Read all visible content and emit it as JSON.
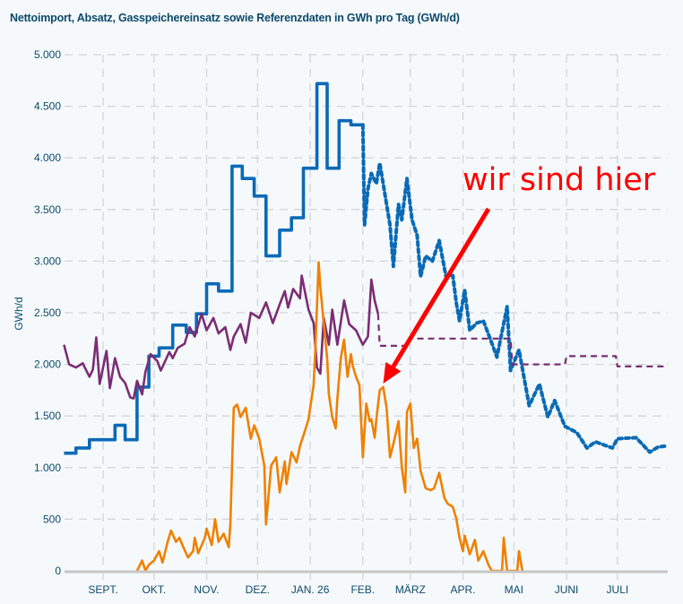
{
  "chart_data": {
    "type": "line",
    "title": "Nettoimport, Absatz, Gasspeichereinsatz sowie Referenzdaten in GWh pro Tag (GWh/d)",
    "ylabel": "GWh/d",
    "xlabel": "",
    "ylim": [
      0,
      5000
    ],
    "xlim": [
      "2025-08-09",
      "2026-07-30"
    ],
    "grid": true,
    "y_ticks": [
      {
        "value": 0,
        "label": "0"
      },
      {
        "value": 500,
        "label": "500"
      },
      {
        "value": 1000,
        "label": "1.000"
      },
      {
        "value": 1500,
        "label": "1.500"
      },
      {
        "value": 2000,
        "label": "2.000"
      },
      {
        "value": 2500,
        "label": "2.500"
      },
      {
        "value": 3000,
        "label": "3.000"
      },
      {
        "value": 3500,
        "label": "3.500"
      },
      {
        "value": 4000,
        "label": "4.000"
      },
      {
        "value": 4500,
        "label": "4.500"
      },
      {
        "value": 5000,
        "label": "5.000"
      }
    ],
    "x_ticks": [
      {
        "date": "2025-09-01",
        "label": "SEPT."
      },
      {
        "date": "2025-10-01",
        "label": "OKT."
      },
      {
        "date": "2025-11-01",
        "label": "NOV."
      },
      {
        "date": "2025-12-01",
        "label": "DEZ."
      },
      {
        "date": "2026-01-01",
        "label": "JAN. 26"
      },
      {
        "date": "2026-02-01",
        "label": "FEB."
      },
      {
        "date": "2026-03-01",
        "label": "MÄRZ"
      },
      {
        "date": "2026-04-01",
        "label": "APR."
      },
      {
        "date": "2026-05-01",
        "label": "MAI"
      },
      {
        "date": "2026-06-01",
        "label": "JUNI"
      },
      {
        "date": "2026-07-01",
        "label": "JULI"
      }
    ],
    "series": [
      {
        "color": "#0a6ab6",
        "style": "solid",
        "step": true,
        "points": [
          [
            "2025-08-09",
            1140
          ],
          [
            "2025-08-16",
            1190
          ],
          [
            "2025-08-24",
            1270
          ],
          [
            "2025-09-08",
            1410
          ],
          [
            "2025-09-14",
            1270
          ],
          [
            "2025-09-21",
            1780
          ],
          [
            "2025-09-28",
            2080
          ],
          [
            "2025-10-04",
            2160
          ],
          [
            "2025-10-12",
            2380
          ],
          [
            "2025-10-20",
            2310
          ],
          [
            "2025-10-26",
            2490
          ],
          [
            "2025-11-01",
            2780
          ],
          [
            "2025-11-08",
            2710
          ],
          [
            "2025-11-16",
            3920
          ],
          [
            "2025-11-22",
            3800
          ],
          [
            "2025-11-29",
            3630
          ],
          [
            "2025-12-06",
            3050
          ],
          [
            "2025-12-14",
            3300
          ],
          [
            "2025-12-21",
            3420
          ],
          [
            "2025-12-28",
            3900
          ],
          [
            "2026-01-05",
            4720
          ],
          [
            "2026-01-11",
            3900
          ],
          [
            "2026-01-18",
            4360
          ],
          [
            "2026-01-25",
            4320
          ],
          [
            "2026-02-01",
            4320
          ]
        ]
      },
      {
        "color": "#0a6ab6",
        "style": "dotted",
        "step": false,
        "points": [
          [
            "2026-02-01",
            4320
          ],
          [
            "2026-02-02",
            3350
          ],
          [
            "2026-02-04",
            3700
          ],
          [
            "2026-02-06",
            3850
          ],
          [
            "2026-02-09",
            3750
          ],
          [
            "2026-02-11",
            3950
          ],
          [
            "2026-02-14",
            3650
          ],
          [
            "2026-02-17",
            3350
          ],
          [
            "2026-02-19",
            2950
          ],
          [
            "2026-02-22",
            3550
          ],
          [
            "2026-02-24",
            3400
          ],
          [
            "2026-02-27",
            3800
          ],
          [
            "2026-03-02",
            3400
          ],
          [
            "2026-03-05",
            3250
          ],
          [
            "2026-03-07",
            2850
          ],
          [
            "2026-03-10",
            3050
          ],
          [
            "2026-03-14",
            3000
          ],
          [
            "2026-03-18",
            3200
          ],
          [
            "2026-03-22",
            2850
          ],
          [
            "2026-03-26",
            2860
          ],
          [
            "2026-03-28",
            2600
          ],
          [
            "2026-03-30",
            2420
          ],
          [
            "2026-04-02",
            2720
          ],
          [
            "2026-04-05",
            2330
          ],
          [
            "2026-04-09",
            2400
          ],
          [
            "2026-04-13",
            2420
          ],
          [
            "2026-04-17",
            2250
          ],
          [
            "2026-04-21",
            2070
          ],
          [
            "2026-04-27",
            2560
          ],
          [
            "2026-04-29",
            1940
          ],
          [
            "2026-05-04",
            2140
          ],
          [
            "2026-05-10",
            1600
          ],
          [
            "2026-05-16",
            1810
          ],
          [
            "2026-05-21",
            1490
          ],
          [
            "2026-05-25",
            1650
          ],
          [
            "2026-05-31",
            1400
          ],
          [
            "2026-06-07",
            1340
          ],
          [
            "2026-06-13",
            1190
          ],
          [
            "2026-06-18",
            1250
          ],
          [
            "2026-06-28",
            1190
          ],
          [
            "2026-07-01",
            1280
          ],
          [
            "2026-07-12",
            1290
          ],
          [
            "2026-07-20",
            1150
          ],
          [
            "2026-07-25",
            1200
          ],
          [
            "2026-07-30",
            1210
          ]
        ]
      },
      {
        "color": "#7b2d74",
        "style": "solid",
        "step": false,
        "points": [
          [
            "2025-08-09",
            2190
          ],
          [
            "2025-08-12",
            2000
          ],
          [
            "2025-08-16",
            1970
          ],
          [
            "2025-08-20",
            2010
          ],
          [
            "2025-08-24",
            1880
          ],
          [
            "2025-08-26",
            1950
          ],
          [
            "2025-08-28",
            2260
          ],
          [
            "2025-08-30",
            1810
          ],
          [
            "2025-09-03",
            2130
          ],
          [
            "2025-09-05",
            1770
          ],
          [
            "2025-09-08",
            2060
          ],
          [
            "2025-09-11",
            1880
          ],
          [
            "2025-09-14",
            1820
          ],
          [
            "2025-09-17",
            1680
          ],
          [
            "2025-09-19",
            1670
          ],
          [
            "2025-09-21",
            1840
          ],
          [
            "2025-09-24",
            1710
          ],
          [
            "2025-09-26",
            1930
          ],
          [
            "2025-09-29",
            2100
          ],
          [
            "2025-10-03",
            2030
          ],
          [
            "2025-10-05",
            1940
          ],
          [
            "2025-10-10",
            2120
          ],
          [
            "2025-10-12",
            2060
          ],
          [
            "2025-10-15",
            2160
          ],
          [
            "2025-10-19",
            2200
          ],
          [
            "2025-10-22",
            2360
          ],
          [
            "2025-10-25",
            2270
          ],
          [
            "2025-10-29",
            2490
          ],
          [
            "2025-11-01",
            2330
          ],
          [
            "2025-11-05",
            2450
          ],
          [
            "2025-11-08",
            2300
          ],
          [
            "2025-11-12",
            2360
          ],
          [
            "2025-11-15",
            2140
          ],
          [
            "2025-11-17",
            2270
          ],
          [
            "2025-11-21",
            2390
          ],
          [
            "2025-11-24",
            2210
          ],
          [
            "2025-11-27",
            2500
          ],
          [
            "2025-12-02",
            2450
          ],
          [
            "2025-12-06",
            2600
          ],
          [
            "2025-12-10",
            2400
          ],
          [
            "2025-12-14",
            2580
          ],
          [
            "2025-12-17",
            2710
          ],
          [
            "2025-12-19",
            2550
          ],
          [
            "2025-12-22",
            2730
          ],
          [
            "2025-12-26",
            2640
          ],
          [
            "2025-12-27",
            2860
          ],
          [
            "2025-12-31",
            2530
          ],
          [
            "2026-01-03",
            2400
          ],
          [
            "2026-01-05",
            1970
          ],
          [
            "2026-01-07",
            1910
          ],
          [
            "2026-01-09",
            2450
          ],
          [
            "2026-01-12",
            2190
          ],
          [
            "2026-01-14",
            2530
          ],
          [
            "2026-01-17",
            2190
          ],
          [
            "2026-01-21",
            2620
          ],
          [
            "2026-01-24",
            2390
          ],
          [
            "2026-01-28",
            2330
          ],
          [
            "2026-02-01",
            2190
          ],
          [
            "2026-02-04",
            2270
          ],
          [
            "2026-02-06",
            2820
          ],
          [
            "2026-02-08",
            2620
          ],
          [
            "2026-02-10",
            2490
          ]
        ]
      },
      {
        "color": "#7b2d74",
        "style": "dashed",
        "step": false,
        "points": [
          [
            "2026-02-10",
            2490
          ],
          [
            "2026-02-11",
            2180
          ],
          [
            "2026-02-27",
            2180
          ],
          [
            "2026-02-28",
            2250
          ],
          [
            "2026-04-29",
            2250
          ],
          [
            "2026-04-30",
            2000
          ],
          [
            "2026-05-31",
            2000
          ],
          [
            "2026-06-01",
            2080
          ],
          [
            "2026-06-30",
            2080
          ],
          [
            "2026-07-01",
            1980
          ],
          [
            "2026-07-30",
            1980
          ]
        ]
      },
      {
        "color": "#f08000",
        "style": "solid",
        "step": false,
        "points": [
          [
            "2025-09-21",
            0
          ],
          [
            "2025-09-24",
            100
          ],
          [
            "2025-09-26",
            0
          ],
          [
            "2025-09-28",
            60
          ],
          [
            "2025-10-01",
            100
          ],
          [
            "2025-10-04",
            190
          ],
          [
            "2025-10-06",
            80
          ],
          [
            "2025-10-09",
            280
          ],
          [
            "2025-10-11",
            390
          ],
          [
            "2025-10-14",
            280
          ],
          [
            "2025-10-16",
            320
          ],
          [
            "2025-10-18",
            240
          ],
          [
            "2025-10-21",
            130
          ],
          [
            "2025-10-24",
            190
          ],
          [
            "2025-10-25",
            320
          ],
          [
            "2025-10-27",
            170
          ],
          [
            "2025-10-31",
            320
          ],
          [
            "2025-11-01",
            410
          ],
          [
            "2025-11-04",
            250
          ],
          [
            "2025-11-06",
            500
          ],
          [
            "2025-11-08",
            280
          ],
          [
            "2025-11-11",
            360
          ],
          [
            "2025-11-14",
            230
          ],
          [
            "2025-11-15",
            450
          ],
          [
            "2025-11-17",
            1580
          ],
          [
            "2025-11-19",
            1610
          ],
          [
            "2025-11-21",
            1490
          ],
          [
            "2025-11-24",
            1580
          ],
          [
            "2025-11-27",
            1280
          ],
          [
            "2025-11-29",
            1410
          ],
          [
            "2025-12-02",
            1280
          ],
          [
            "2025-12-05",
            1020
          ],
          [
            "2025-12-06",
            450
          ],
          [
            "2025-12-09",
            1020
          ],
          [
            "2025-12-12",
            1100
          ],
          [
            "2025-12-14",
            760
          ],
          [
            "2025-12-17",
            1060
          ],
          [
            "2025-12-18",
            840
          ],
          [
            "2025-12-21",
            1150
          ],
          [
            "2025-12-24",
            1050
          ],
          [
            "2025-12-26",
            1210
          ],
          [
            "2025-12-29",
            1360
          ],
          [
            "2025-12-31",
            1470
          ],
          [
            "2026-01-03",
            1800
          ],
          [
            "2026-01-04",
            2140
          ],
          [
            "2026-01-06",
            2990
          ],
          [
            "2026-01-07",
            2750
          ],
          [
            "2026-01-09",
            2400
          ],
          [
            "2026-01-11",
            2060
          ],
          [
            "2026-01-12",
            1710
          ],
          [
            "2026-01-14",
            1490
          ],
          [
            "2026-01-16",
            1380
          ],
          [
            "2026-01-17",
            1670
          ],
          [
            "2026-01-19",
            2060
          ],
          [
            "2026-01-21",
            2240
          ],
          [
            "2026-01-23",
            1880
          ],
          [
            "2026-01-25",
            2100
          ],
          [
            "2026-01-26",
            1990
          ],
          [
            "2026-01-28",
            1880
          ],
          [
            "2026-01-30",
            1800
          ],
          [
            "2026-02-01",
            1100
          ],
          [
            "2026-02-03",
            1620
          ],
          [
            "2026-02-05",
            1450
          ],
          [
            "2026-02-06",
            1470
          ],
          [
            "2026-02-08",
            1290
          ],
          [
            "2026-02-09",
            1470
          ],
          [
            "2026-02-11",
            1750
          ],
          [
            "2026-02-13",
            1780
          ],
          [
            "2026-02-15",
            1580
          ],
          [
            "2026-02-17",
            1100
          ],
          [
            "2026-02-19",
            1230
          ],
          [
            "2026-02-22",
            1450
          ],
          [
            "2026-02-24",
            1000
          ],
          [
            "2026-02-26",
            760
          ],
          [
            "2026-02-27",
            1540
          ],
          [
            "2026-03-01",
            1620
          ],
          [
            "2026-03-03",
            1190
          ],
          [
            "2026-03-05",
            1280
          ],
          [
            "2026-03-07",
            970
          ],
          [
            "2026-03-10",
            800
          ],
          [
            "2026-03-13",
            780
          ],
          [
            "2026-03-15",
            800
          ],
          [
            "2026-03-18",
            950
          ],
          [
            "2026-03-21",
            710
          ],
          [
            "2026-03-23",
            650
          ],
          [
            "2026-03-26",
            620
          ],
          [
            "2026-03-28",
            510
          ],
          [
            "2026-03-30",
            320
          ],
          [
            "2026-04-01",
            190
          ],
          [
            "2026-04-02",
            340
          ],
          [
            "2026-04-05",
            160
          ],
          [
            "2026-04-08",
            300
          ],
          [
            "2026-04-10",
            100
          ],
          [
            "2026-04-13",
            190
          ],
          [
            "2026-04-16",
            60
          ],
          [
            "2026-04-18",
            0
          ],
          [
            "2026-04-24",
            0
          ],
          [
            "2026-04-25",
            320
          ],
          [
            "2026-04-27",
            0
          ],
          [
            "2026-05-03",
            0
          ],
          [
            "2026-05-04",
            190
          ],
          [
            "2026-05-06",
            0
          ]
        ]
      }
    ],
    "annotations": [
      {
        "text": "wir sind hier",
        "color": "#ff0000",
        "arrow_to": [
          "2026-02-13",
          1780
        ]
      }
    ]
  }
}
